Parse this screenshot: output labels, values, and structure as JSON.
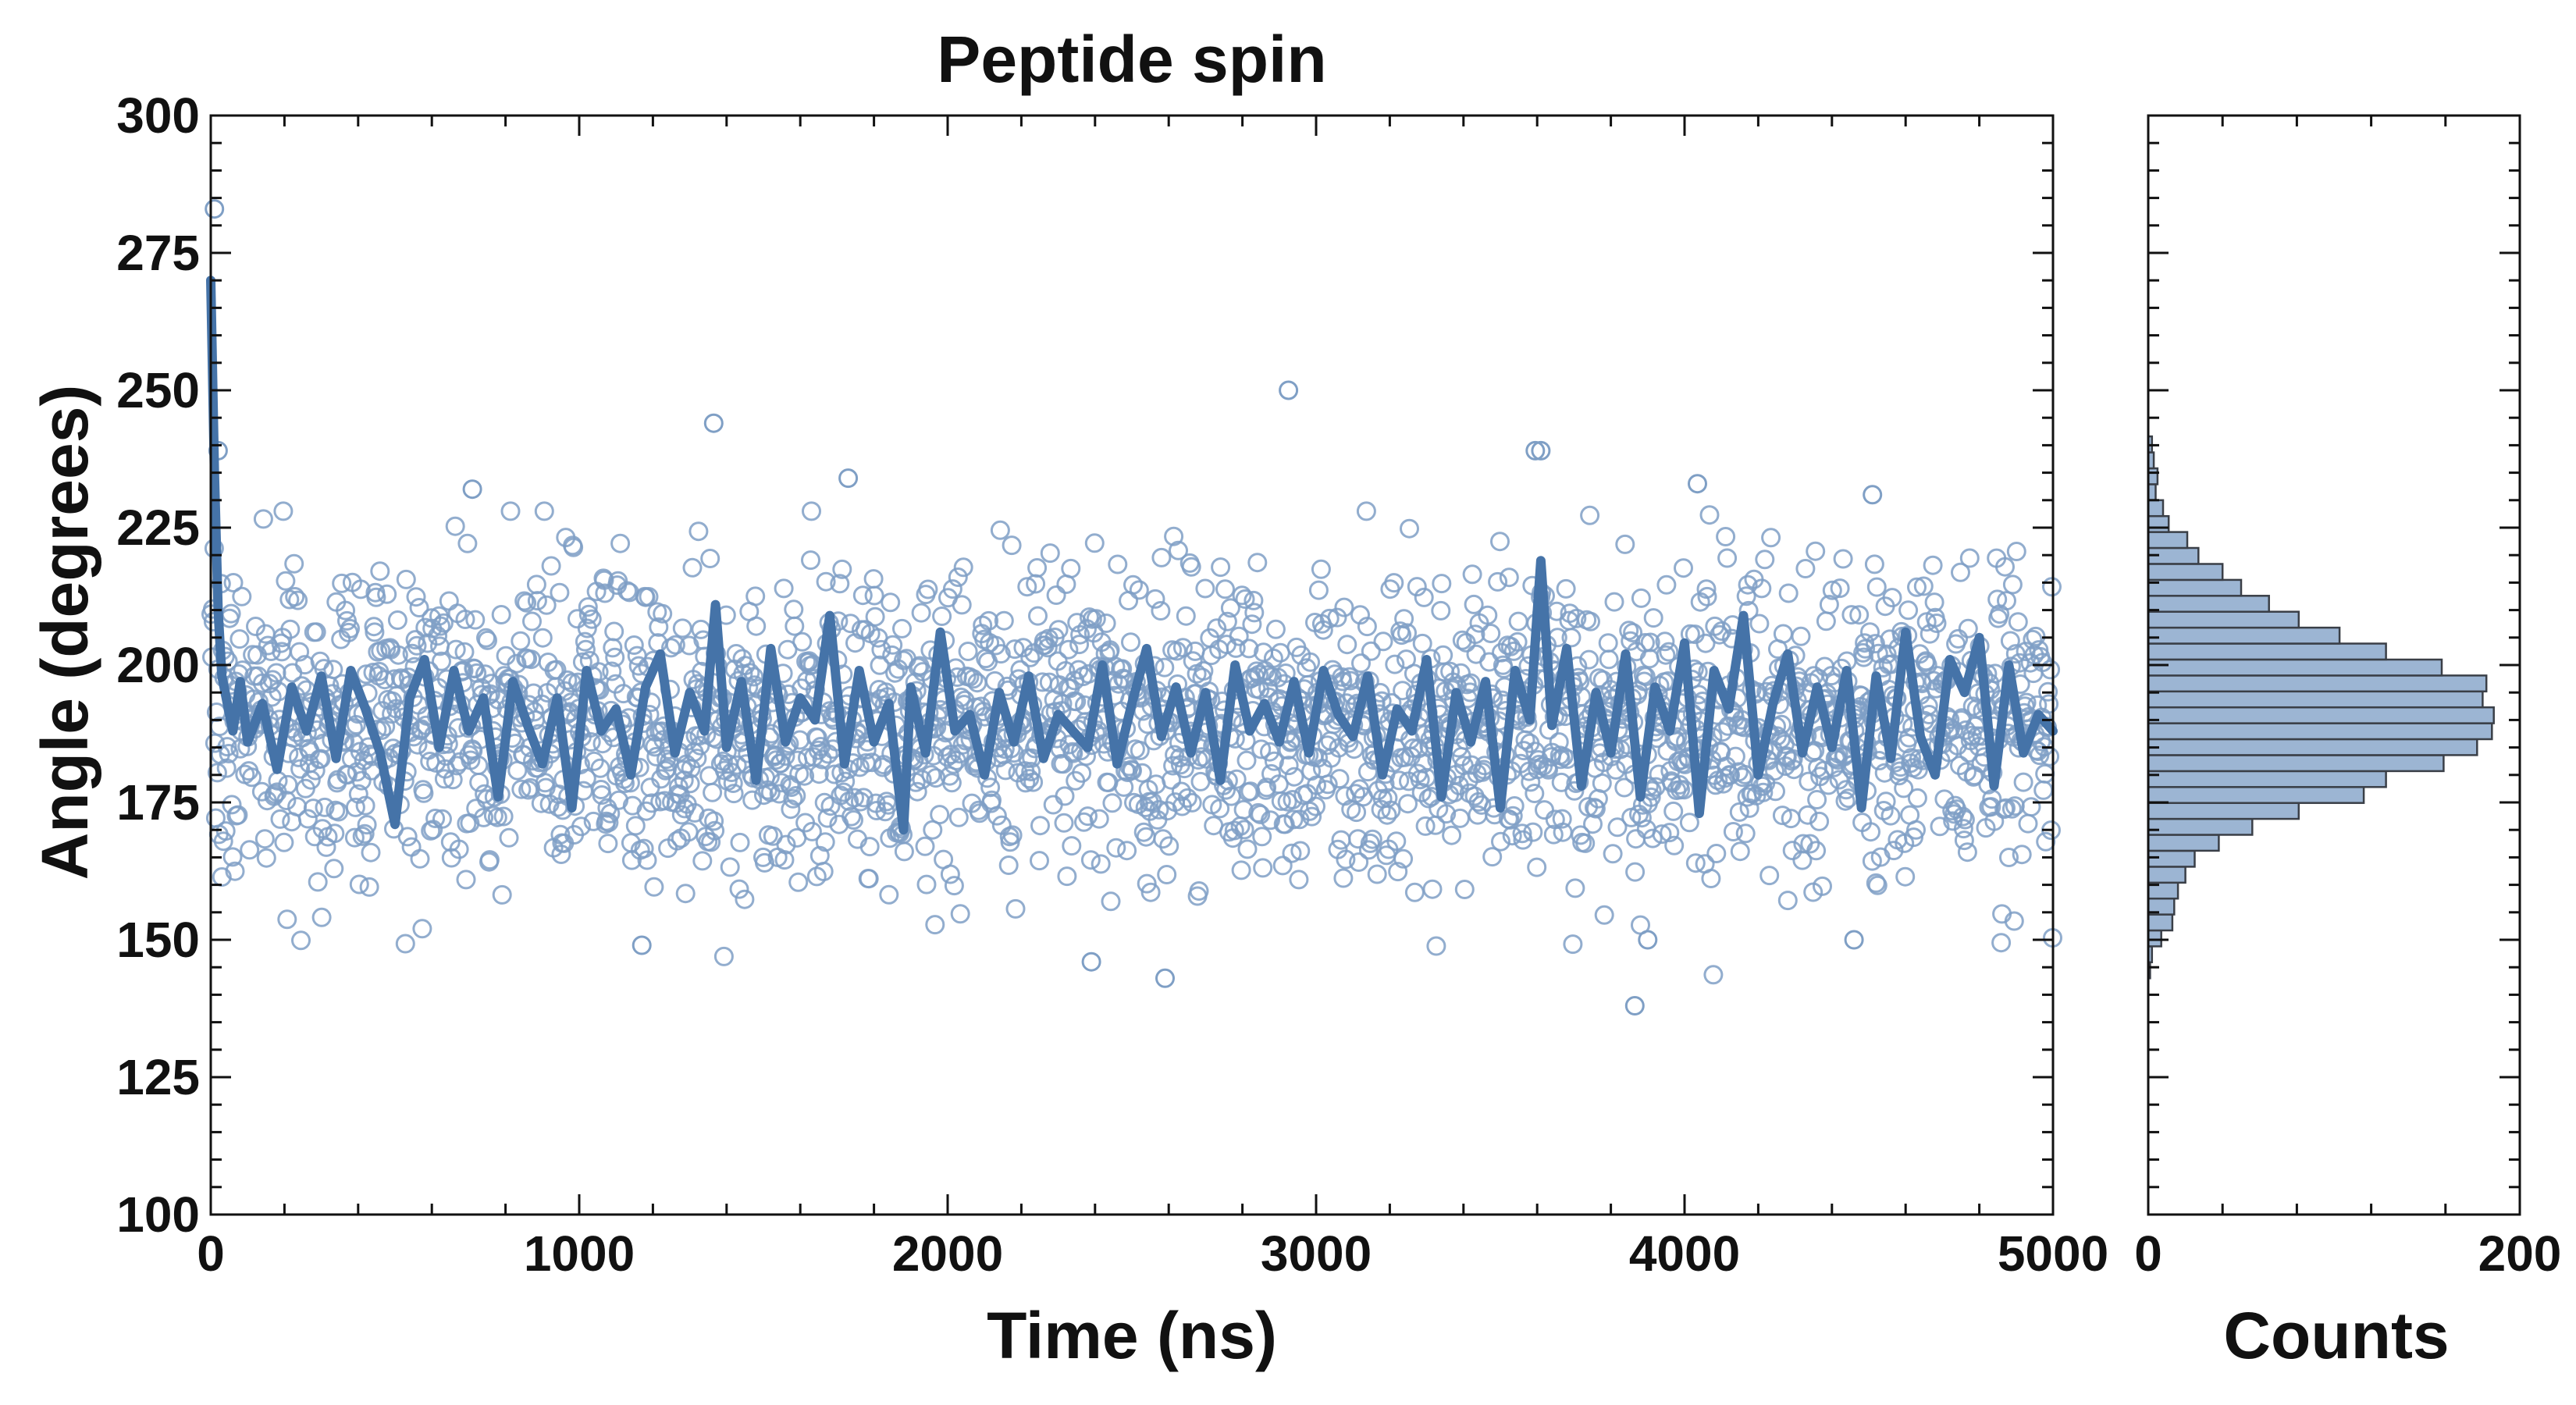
{
  "chart_data": [
    {
      "type": "scatter",
      "title": "Peptide spin",
      "xlabel": "Time (ns)",
      "ylabel": "Angle (degrees)",
      "xlim": [
        0,
        5000
      ],
      "ylim": [
        100,
        300
      ],
      "x_ticks": [
        0,
        1000,
        2000,
        3000,
        4000,
        5000
      ],
      "y_ticks": [
        100,
        125,
        150,
        175,
        200,
        225,
        250,
        275,
        300
      ],
      "x_tick_labels": [
        "0",
        "1000",
        "2000",
        "3000",
        "4000",
        "5000"
      ],
      "y_tick_labels": [
        "100",
        "125",
        "150",
        "175",
        "200",
        "225",
        "250",
        "275",
        "300"
      ],
      "grid": false,
      "legend": "none",
      "scatter_color": "#7f9fc5",
      "line_color": "#4573a8",
      "outlier_points": [
        {
          "x": 10,
          "y": 283
        },
        {
          "x": 20,
          "y": 239
        },
        {
          "x": 1365,
          "y": 244
        },
        {
          "x": 1730,
          "y": 234
        },
        {
          "x": 2925,
          "y": 250
        },
        {
          "x": 3595,
          "y": 239
        },
        {
          "x": 3610,
          "y": 239
        },
        {
          "x": 4035,
          "y": 233
        },
        {
          "x": 4510,
          "y": 231
        },
        {
          "x": 710,
          "y": 232
        },
        {
          "x": 2390,
          "y": 146
        },
        {
          "x": 2590,
          "y": 143
        },
        {
          "x": 3865,
          "y": 138
        },
        {
          "x": 1170,
          "y": 149
        },
        {
          "x": 4460,
          "y": 150
        },
        {
          "x": 3900,
          "y": 150
        }
      ],
      "smoothed_line": {
        "x": [
          0,
          10,
          20,
          30,
          45,
          60,
          80,
          100,
          140,
          180,
          220,
          260,
          300,
          340,
          380,
          420,
          460,
          500,
          540,
          580,
          620,
          660,
          700,
          740,
          780,
          820,
          860,
          900,
          940,
          980,
          1020,
          1060,
          1100,
          1140,
          1180,
          1220,
          1260,
          1300,
          1340,
          1370,
          1400,
          1440,
          1480,
          1520,
          1560,
          1600,
          1640,
          1680,
          1720,
          1760,
          1800,
          1840,
          1880,
          1900,
          1940,
          1980,
          2020,
          2060,
          2100,
          2140,
          2180,
          2220,
          2260,
          2300,
          2340,
          2380,
          2420,
          2460,
          2500,
          2540,
          2580,
          2620,
          2660,
          2700,
          2740,
          2780,
          2820,
          2860,
          2900,
          2940,
          2980,
          3020,
          3060,
          3100,
          3140,
          3180,
          3220,
          3260,
          3300,
          3340,
          3380,
          3420,
          3460,
          3500,
          3540,
          3580,
          3610,
          3640,
          3680,
          3720,
          3760,
          3800,
          3840,
          3880,
          3920,
          3960,
          4000,
          4040,
          4080,
          4120,
          4160,
          4200,
          4240,
          4280,
          4320,
          4360,
          4400,
          4440,
          4480,
          4520,
          4560,
          4600,
          4640,
          4680,
          4720,
          4760,
          4800,
          4840,
          4880,
          4920,
          4960,
          5000
        ],
        "y": [
          270,
          235,
          210,
          198,
          193,
          188,
          197,
          186,
          193,
          181,
          196,
          188,
          198,
          183,
          199,
          192,
          184,
          171,
          194,
          201,
          185,
          199,
          188,
          194,
          176,
          197,
          189,
          182,
          194,
          174,
          199,
          188,
          192,
          180,
          196,
          202,
          184,
          195,
          188,
          211,
          185,
          197,
          179,
          203,
          186,
          194,
          190,
          209,
          182,
          199,
          186,
          193,
          170,
          196,
          184,
          206,
          188,
          191,
          180,
          195,
          186,
          198,
          183,
          191,
          188,
          185,
          200,
          182,
          193,
          203,
          187,
          196,
          184,
          195,
          179,
          200,
          188,
          193,
          186,
          197,
          184,
          199,
          191,
          187,
          198,
          180,
          192,
          188,
          201,
          176,
          195,
          186,
          197,
          174,
          199,
          190,
          219,
          189,
          203,
          178,
          195,
          184,
          202,
          176,
          196,
          188,
          204,
          173,
          199,
          192,
          209,
          180,
          193,
          202,
          184,
          196,
          185,
          199,
          174,
          198,
          183,
          206,
          187,
          180,
          201,
          195,
          205,
          178,
          200,
          184,
          191,
          188
        ]
      },
      "scatter_seed": 7,
      "scatter_count": 2400,
      "scatter_mean": 189,
      "scatter_sd": 14
    },
    {
      "type": "bar",
      "orientation": "horizontal",
      "xlabel": "Counts",
      "xlim": [
        0,
        200
      ],
      "x_ticks": [
        0,
        200
      ],
      "x_tick_labels": [
        "0",
        "200"
      ],
      "ylim": [
        100,
        300
      ],
      "bar_color": "#9cb5d3",
      "edge_color": "#3a3f47",
      "bin_width": 2.9,
      "bin_starts": [
        143.0,
        145.9,
        148.8,
        151.7,
        154.6,
        157.5,
        160.4,
        163.3,
        166.2,
        169.1,
        172.0,
        174.9,
        177.8,
        180.7,
        183.6,
        186.5,
        189.4,
        192.3,
        195.2,
        198.1,
        201.0,
        203.9,
        206.8,
        209.7,
        212.6,
        215.5,
        218.4,
        221.3,
        224.2,
        227.1,
        230.0,
        232.9,
        235.8,
        238.7
      ],
      "counts": [
        1,
        2,
        7,
        13,
        14,
        16,
        20,
        25,
        38,
        56,
        81,
        116,
        128,
        159,
        177,
        185,
        186,
        180,
        182,
        158,
        128,
        103,
        81,
        65,
        50,
        40,
        27,
        21,
        11,
        8,
        4,
        5,
        3,
        2
      ]
    }
  ]
}
